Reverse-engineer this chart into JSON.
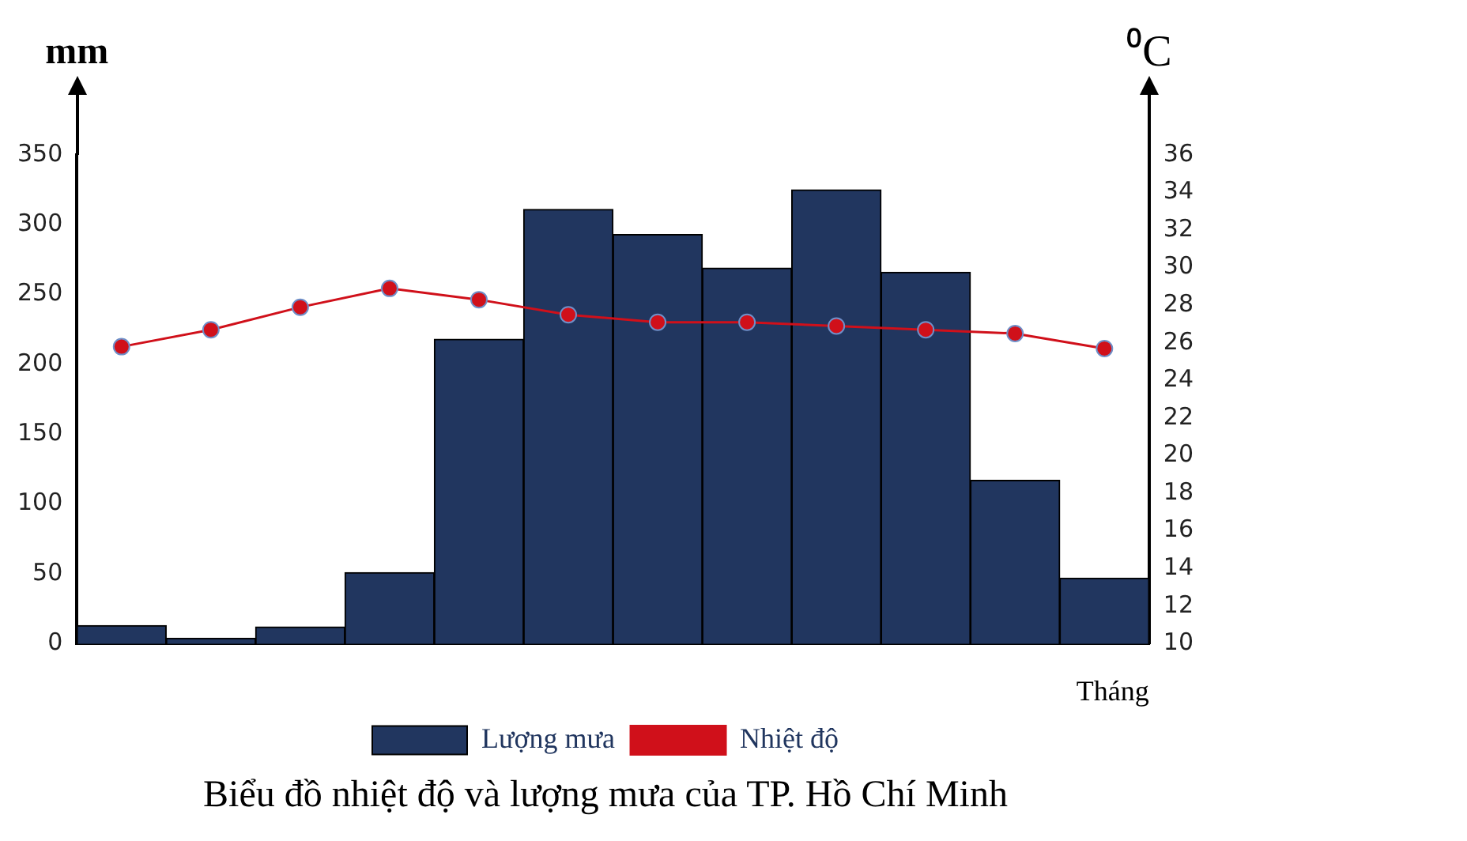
{
  "chart_data": {
    "type": "bar",
    "title": "Biểu đồ nhiệt độ và lượng mưa của TP. Hồ Chí Minh",
    "xlabel": "Tháng",
    "ylabel": "mm",
    "y2label": "⁰C",
    "categories": [
      null,
      null,
      null,
      null,
      null,
      null,
      null,
      null,
      null,
      null,
      null,
      null
    ],
    "series": [
      {
        "name": "Lượng mưa",
        "color": "#21365f",
        "values": [
          13,
          4,
          12,
          51,
          218,
          311,
          293,
          269,
          325,
          266,
          117,
          47
        ]
      },
      {
        "name": "Nhiệt độ",
        "type": "line",
        "axis": "y2",
        "color": "#d0101a",
        "values": [
          25.8,
          26.7,
          27.9,
          28.9,
          28.3,
          27.5,
          27.1,
          27.1,
          26.9,
          26.7,
          26.5,
          25.7
        ]
      }
    ],
    "ylim": [
      0,
      350
    ],
    "yticks": [
      0,
      50,
      100,
      150,
      200,
      250,
      300,
      350
    ],
    "y2lim": [
      10,
      36
    ],
    "y2ticks": [
      10,
      12,
      14,
      16,
      18,
      20,
      22,
      24,
      26,
      28,
      30,
      32,
      34,
      36
    ],
    "legend": "bottom",
    "marker": "circle"
  }
}
